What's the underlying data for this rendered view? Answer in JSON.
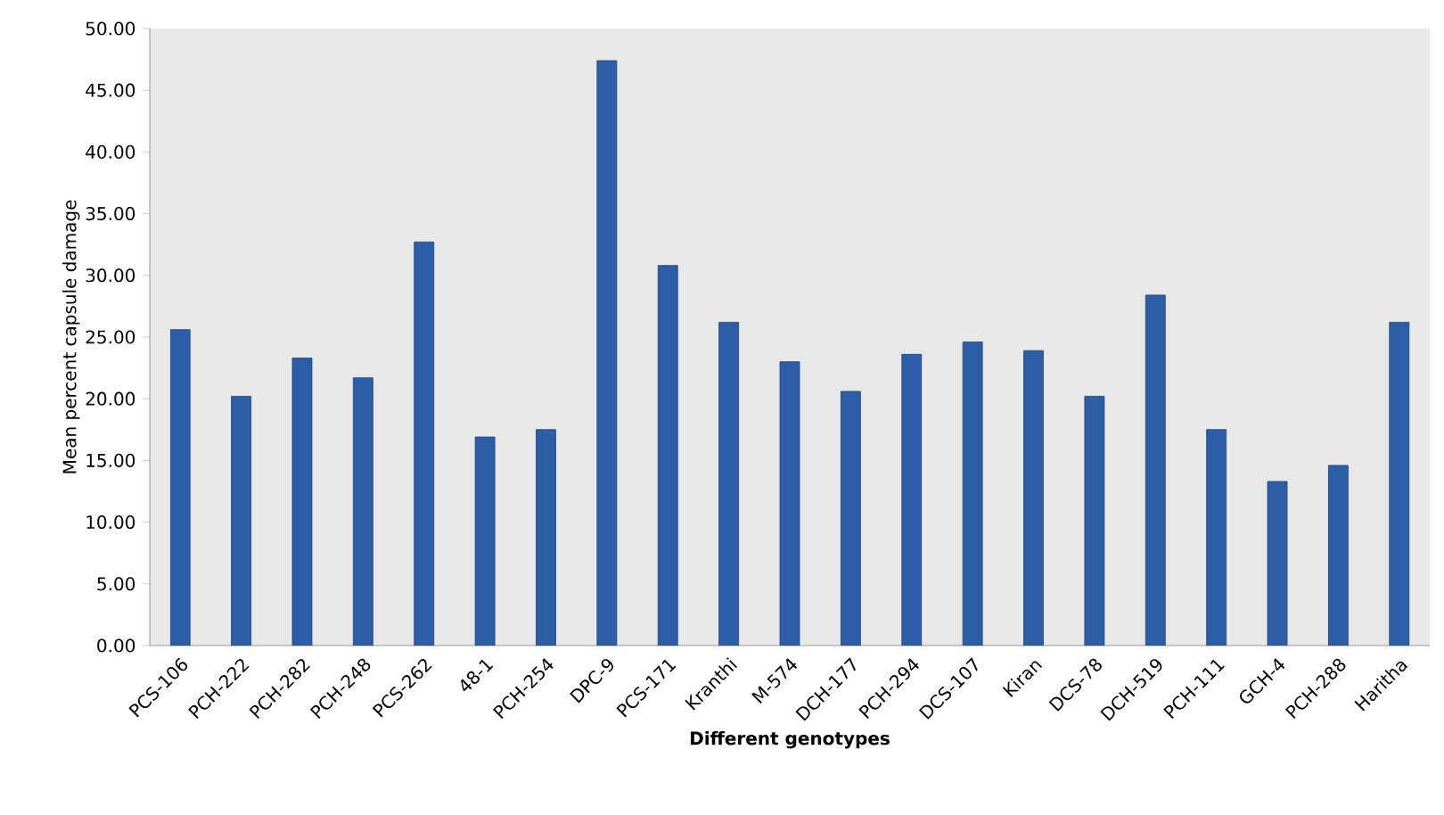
{
  "chart_data": {
    "type": "bar",
    "xlabel": "Different genotypes",
    "ylabel": "Mean percent capsule  damage",
    "categories": [
      "PCS-106",
      "PCH-222",
      "PCH-282",
      "PCH-248",
      "PCS-262",
      "48-1",
      "PCH-254",
      "DPC-9",
      "PCS-171",
      "Kranthi",
      "M-574",
      "DCH-177",
      "PCH-294",
      "DCS-107",
      "Kiran",
      "DCS-78",
      "DCH-519",
      "PCH-111",
      "GCH-4",
      "PCH-288",
      "Haritha"
    ],
    "values": [
      25.6,
      20.2,
      23.3,
      21.7,
      32.7,
      16.9,
      17.5,
      47.4,
      30.8,
      26.2,
      23.0,
      20.6,
      23.6,
      24.6,
      23.9,
      20.2,
      28.4,
      17.5,
      13.3,
      14.6,
      26.2
    ],
    "color": "#2b5ea7",
    "ylim": [
      0,
      50
    ],
    "yticks": [
      {
        "value": 0,
        "label": "0.00"
      },
      {
        "value": 5,
        "label": "5.00"
      },
      {
        "value": 10,
        "label": "10.00"
      },
      {
        "value": 15,
        "label": "15.00"
      },
      {
        "value": 20,
        "label": "20.00"
      },
      {
        "value": 25,
        "label": "25.00"
      },
      {
        "value": 30,
        "label": "30.00"
      },
      {
        "value": 35,
        "label": "35.00"
      },
      {
        "value": 40,
        "label": "40.00"
      },
      {
        "value": 45,
        "label": "45.00"
      },
      {
        "value": 50,
        "label": "50.00"
      }
    ],
    "grid": false
  }
}
